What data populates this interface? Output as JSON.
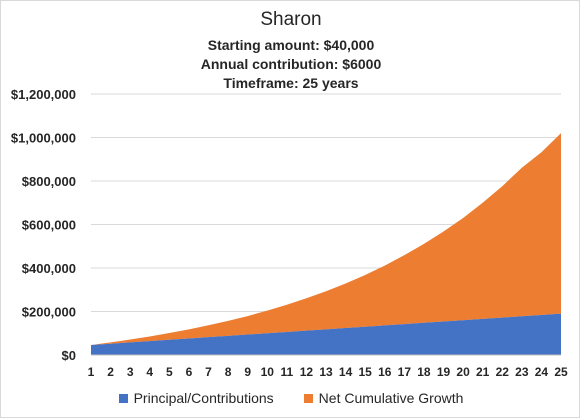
{
  "chart_data": {
    "type": "area",
    "title": "Sharon",
    "subtitle_lines": [
      "Starting amount:  $40,000",
      "Annual contribution: $6000",
      "Timeframe: 25 years"
    ],
    "x": [
      1,
      2,
      3,
      4,
      5,
      6,
      7,
      8,
      9,
      10,
      11,
      12,
      13,
      14,
      15,
      16,
      17,
      18,
      19,
      20,
      21,
      22,
      23,
      24,
      25
    ],
    "ylim": [
      0,
      1200000
    ],
    "y_ticks": [
      0,
      200000,
      400000,
      600000,
      800000,
      1000000,
      1200000
    ],
    "y_tick_labels": [
      "$0",
      "$200,000",
      "$400,000",
      "$600,000",
      "$800,000",
      "$1,000,000",
      "$1,200,000"
    ],
    "stacked": true,
    "grid": true,
    "legend_position": "bottom",
    "series": [
      {
        "name": "Principal/Contributions",
        "color": "#4472C4",
        "values": [
          46000,
          52000,
          58000,
          64000,
          70000,
          76000,
          82000,
          88000,
          94000,
          100000,
          106000,
          112000,
          118000,
          124000,
          130000,
          136000,
          142000,
          148000,
          154000,
          160000,
          166000,
          172000,
          178000,
          184000,
          190000
        ]
      },
      {
        "name": "Net Cumulative Growth",
        "color": "#ED7D31",
        "values": [
          0,
          6000,
          13000,
          21000,
          31000,
          42000,
          55000,
          69000,
          85000,
          104000,
          125000,
          149000,
          175000,
          205000,
          238000,
          275000,
          317000,
          363000,
          414000,
          470000,
          534000,
          604000,
          683000,
          748000,
          830000
        ]
      }
    ]
  }
}
